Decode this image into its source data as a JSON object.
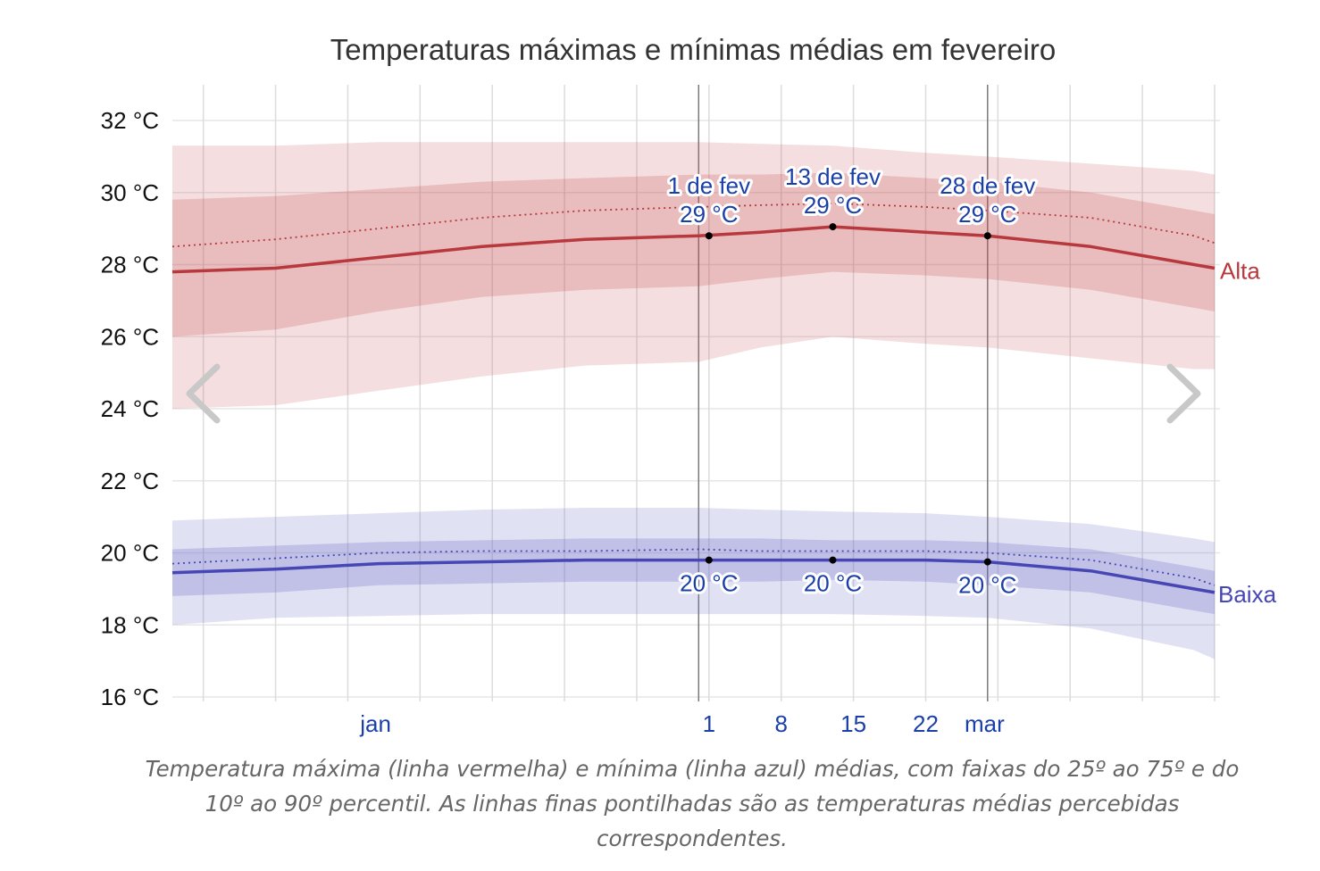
{
  "chart_data": {
    "type": "area",
    "title": "Temperaturas máximas e mínimas médias em fevereiro",
    "ylim": [
      16,
      32
    ],
    "y_ticks": [
      16,
      18,
      20,
      22,
      24,
      26,
      28,
      30,
      32
    ],
    "y_tick_labels": [
      "16 °C",
      "18 °C",
      "20 °C",
      "22 °C",
      "24 °C",
      "26 °C",
      "28 °C",
      "30 °C",
      "32 °C"
    ],
    "x_range": [
      "2025-12-11",
      "2026-03-22"
    ],
    "x_month_labels": [
      {
        "label": "jan",
        "date": "2026-01-01"
      },
      {
        "label": "mar",
        "date": "2026-03-01"
      }
    ],
    "x_week_labels": [
      {
        "label": "1",
        "date": "2026-02-01"
      },
      {
        "label": "8",
        "date": "2026-02-08"
      },
      {
        "label": "15",
        "date": "2026-02-15"
      },
      {
        "label": "22",
        "date": "2026-02-22"
      }
    ],
    "month_boundaries": [
      "2026-01-31",
      "2026-02-28"
    ],
    "x": [
      "2025-12-11",
      "2025-12-21",
      "2025-12-31",
      "2026-01-10",
      "2026-01-20",
      "2026-01-31",
      "2026-02-06",
      "2026-02-13",
      "2026-02-22",
      "2026-02-28",
      "2026-03-10",
      "2026-03-20",
      "2026-03-22"
    ],
    "series": [
      {
        "name": "Alta",
        "color": "#b7383d",
        "mean": [
          27.8,
          27.9,
          28.2,
          28.5,
          28.7,
          28.8,
          28.9,
          29.05,
          28.9,
          28.8,
          28.5,
          28.0,
          27.9
        ],
        "feels_like": [
          28.5,
          28.7,
          29.0,
          29.3,
          29.5,
          29.6,
          29.65,
          29.7,
          29.6,
          29.5,
          29.3,
          28.8,
          28.6
        ],
        "p25": [
          26.0,
          26.2,
          26.7,
          27.1,
          27.3,
          27.4,
          27.6,
          27.8,
          27.7,
          27.6,
          27.3,
          26.8,
          26.7
        ],
        "p75": [
          29.8,
          29.9,
          30.1,
          30.3,
          30.4,
          30.5,
          30.5,
          30.55,
          30.4,
          30.3,
          30.0,
          29.5,
          29.4
        ],
        "p10": [
          24.0,
          24.1,
          24.5,
          24.9,
          25.2,
          25.3,
          25.7,
          26.0,
          25.8,
          25.7,
          25.4,
          25.1,
          25.1
        ],
        "p90": [
          31.3,
          31.3,
          31.4,
          31.4,
          31.4,
          31.4,
          31.35,
          31.3,
          31.1,
          31.0,
          30.8,
          30.6,
          30.5
        ]
      },
      {
        "name": "Baixa",
        "color": "#4646b4",
        "mean": [
          19.45,
          19.55,
          19.7,
          19.75,
          19.8,
          19.8,
          19.8,
          19.8,
          19.8,
          19.75,
          19.5,
          19.0,
          18.9
        ],
        "feels_like": [
          19.7,
          19.85,
          20.0,
          20.05,
          20.05,
          20.1,
          20.05,
          20.05,
          20.05,
          20.0,
          19.8,
          19.3,
          19.1
        ],
        "p25": [
          18.8,
          18.9,
          19.1,
          19.15,
          19.2,
          19.2,
          19.2,
          19.25,
          19.2,
          19.1,
          18.9,
          18.4,
          18.3
        ],
        "p75": [
          20.1,
          20.2,
          20.3,
          20.35,
          20.4,
          20.4,
          20.4,
          20.35,
          20.35,
          20.3,
          20.1,
          19.6,
          19.5
        ],
        "p10": [
          18.0,
          18.2,
          18.25,
          18.3,
          18.3,
          18.3,
          18.3,
          18.3,
          18.25,
          18.2,
          17.9,
          17.3,
          17.05
        ],
        "p90": [
          20.9,
          21.0,
          21.1,
          21.2,
          21.25,
          21.25,
          21.2,
          21.15,
          21.1,
          21.0,
          20.8,
          20.4,
          20.3
        ]
      }
    ],
    "annotations": [
      {
        "date_label": "1 de fev",
        "high_label": "29 °C",
        "low_label": "20 °C",
        "date": "2026-02-01",
        "high": 28.8,
        "low": 19.8
      },
      {
        "date_label": "13 de fev",
        "high_label": "29 °C",
        "low_label": "20 °C",
        "date": "2026-02-13",
        "high": 29.05,
        "low": 19.8
      },
      {
        "date_label": "28 de fev",
        "high_label": "29 °C",
        "low_label": "20 °C",
        "date": "2026-02-28",
        "high": 28.8,
        "low": 19.75
      }
    ],
    "series_labels": {
      "high": "Alta",
      "low": "Baixa"
    },
    "grid": true,
    "legend": "none"
  },
  "caption": "Temperatura máxima (linha vermelha) e mínima (linha azul) médias, com faixas do 25º ao 75º e do 10º ao 90º percentil. As linhas finas pontilhadas são as temperaturas médias percebidas correspondentes.",
  "navigation": {
    "prev_icon": "chevron-left-icon",
    "next_icon": "chevron-right-icon"
  }
}
